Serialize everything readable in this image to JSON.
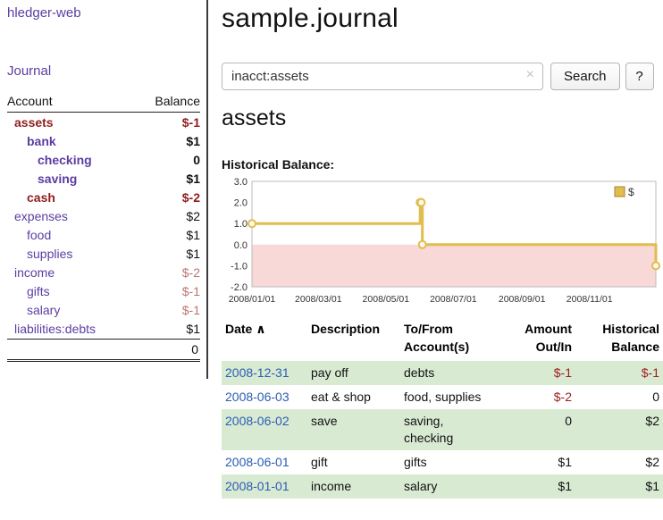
{
  "colors": {
    "link_purple": "#5b3da2",
    "negative_red": "#8f1d1d",
    "negative_dim": "#bd7474",
    "table_negative_red": "#9d1c1c",
    "date_blue": "#2a5db5",
    "row_green": "#d9ead3",
    "chart_line_gold": "#e0bd4e",
    "chart_legend_border": "#a8862a",
    "chart_negative_region": "#f9d8d8"
  },
  "sidebar": {
    "app_title": "hledger-web",
    "journal_link": "Journal",
    "accounts": {
      "header_account": "Account",
      "header_balance": "Balance",
      "rows": [
        {
          "name": "assets",
          "balance": "$-1",
          "depth": 1,
          "bold": true,
          "name_color": "negative",
          "balance_color": "negative"
        },
        {
          "name": "bank",
          "balance": "$1",
          "depth": 2,
          "bold": true,
          "name_color": "link",
          "balance_color": "default"
        },
        {
          "name": "checking",
          "balance": "0",
          "depth": 3,
          "bold": true,
          "name_color": "link",
          "balance_color": "default"
        },
        {
          "name": "saving",
          "balance": "$1",
          "depth": 3,
          "bold": true,
          "name_color": "link",
          "balance_color": "default"
        },
        {
          "name": "cash",
          "balance": "$-2",
          "depth": 2,
          "bold": true,
          "name_color": "negative",
          "balance_color": "negative"
        },
        {
          "name": "expenses",
          "balance": "$2",
          "depth": 1,
          "bold": false,
          "name_color": "link",
          "balance_color": "default"
        },
        {
          "name": "food",
          "balance": "$1",
          "depth": 2,
          "bold": false,
          "name_color": "link",
          "balance_color": "default"
        },
        {
          "name": "supplies",
          "balance": "$1",
          "depth": 2,
          "bold": false,
          "name_color": "link",
          "balance_color": "default"
        },
        {
          "name": "income",
          "balance": "$-2",
          "depth": 1,
          "bold": false,
          "name_color": "link",
          "balance_color": "negative-dim"
        },
        {
          "name": "gifts",
          "balance": "$-1",
          "depth": 2,
          "bold": false,
          "name_color": "link",
          "balance_color": "negative-dim"
        },
        {
          "name": "salary",
          "balance": "$-1",
          "depth": 2,
          "bold": false,
          "name_color": "link",
          "balance_color": "negative-dim"
        },
        {
          "name": "liabilities:debts",
          "balance": "$1",
          "depth": 1,
          "bold": false,
          "name_color": "link",
          "balance_color": "default"
        }
      ],
      "total": "0"
    }
  },
  "main": {
    "title": "sample.journal",
    "search": {
      "value": "inacct:assets",
      "clear_icon": "×",
      "search_button": "Search",
      "help_button": "?"
    },
    "section_heading": "assets",
    "chart_title": "Historical Balance:",
    "chart_data": {
      "type": "line",
      "step": true,
      "title": "Historical Balance",
      "legend": "$",
      "legend_position": "top-right",
      "grid": false,
      "x_range": [
        "2008-01-01",
        "2008-12-31"
      ],
      "ylim": [
        -2,
        3
      ],
      "yticks": [
        3,
        2,
        1,
        0,
        -1,
        -2
      ],
      "xticks": [
        "2008/01/01",
        "2008/03/01",
        "2008/05/01",
        "2008/07/01",
        "2008/09/01",
        "2008/11/01"
      ],
      "series": [
        {
          "name": "$",
          "points": [
            [
              "2008-01-01",
              1
            ],
            [
              "2008-06-01",
              2
            ],
            [
              "2008-06-02",
              2
            ],
            [
              "2008-06-03",
              0
            ],
            [
              "2008-12-31",
              -1
            ]
          ]
        }
      ]
    },
    "register": {
      "headers": {
        "date": "Date",
        "sort_icon": "∧",
        "description": "Description",
        "accounts": [
          "To/From",
          "Account(s)"
        ],
        "amount": [
          "Amount",
          "Out/In"
        ],
        "balance": [
          "Historical",
          "Balance"
        ]
      },
      "rows": [
        {
          "date": "2008-12-31",
          "description": "pay off",
          "accounts": "debts",
          "amount": "$-1",
          "amount_negative": true,
          "balance": "$-1",
          "balance_negative": true,
          "shaded": true
        },
        {
          "date": "2008-06-03",
          "description": "eat & shop",
          "accounts": "food, supplies",
          "amount": "$-2",
          "amount_negative": true,
          "balance": "0",
          "balance_negative": false,
          "shaded": false
        },
        {
          "date": "2008-06-02",
          "description": "save",
          "accounts": "saving, checking",
          "amount": "0",
          "amount_negative": false,
          "balance": "$2",
          "balance_negative": false,
          "shaded": true
        },
        {
          "date": "2008-06-01",
          "description": "gift",
          "accounts": "gifts",
          "amount": "$1",
          "amount_negative": false,
          "balance": "$2",
          "balance_negative": false,
          "shaded": false
        },
        {
          "date": "2008-01-01",
          "description": "income",
          "accounts": "salary",
          "amount": "$1",
          "amount_negative": false,
          "balance": "$1",
          "balance_negative": false,
          "shaded": true
        }
      ]
    }
  }
}
